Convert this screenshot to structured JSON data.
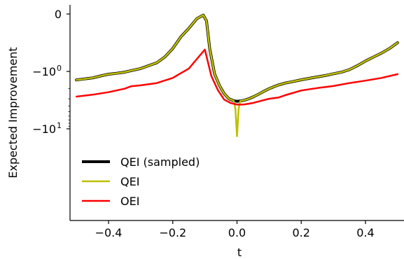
{
  "chart_data": {
    "type": "line",
    "title": "",
    "xlabel": "t",
    "ylabel": "Expected Improvement",
    "xlim": [
      -0.52,
      0.52
    ],
    "y_scale": "symlog",
    "y_linthresh": 1,
    "ylim": [
      -14,
      0
    ],
    "x_ticks": [
      {
        "value": -0.4,
        "label": "−0.4"
      },
      {
        "value": -0.2,
        "label": "−0.2"
      },
      {
        "value": 0.0,
        "label": "0.0"
      },
      {
        "value": 0.2,
        "label": "0.2"
      },
      {
        "value": 0.4,
        "label": "0.4"
      }
    ],
    "y_ticks": [
      {
        "value": 0,
        "label": "0",
        "sup": ""
      },
      {
        "value": -1,
        "label": "−10",
        "sup": "0"
      },
      {
        "value": -10,
        "label": "−10",
        "sup": "1"
      }
    ],
    "legend": {
      "position": "lower-left",
      "entries": [
        {
          "label": "QEI (sampled)",
          "color": "#000000"
        },
        {
          "label": "QEI",
          "color": "#bfbf00"
        },
        {
          "label": "OEI",
          "color": "#ff0000"
        }
      ]
    },
    "grid": false,
    "series": [
      {
        "name": "QEI (sampled)",
        "color": "#000000",
        "linewidth": 4,
        "x": [
          -0.5,
          -0.475,
          -0.45,
          -0.425,
          -0.4,
          -0.375,
          -0.35,
          -0.325,
          -0.3,
          -0.275,
          -0.25,
          -0.225,
          -0.2,
          -0.175,
          -0.15,
          -0.125,
          -0.105,
          -0.095,
          -0.085,
          -0.07,
          -0.055,
          -0.04,
          -0.025,
          -0.01,
          0.0,
          0.01,
          0.025,
          0.04,
          0.055,
          0.07,
          0.085,
          0.1,
          0.115,
          0.13,
          0.15,
          0.175,
          0.2,
          0.225,
          0.25,
          0.275,
          0.3,
          0.325,
          0.35,
          0.375,
          0.4,
          0.425,
          0.45,
          0.475,
          0.5
        ],
        "y": [
          -1.41,
          -1.35,
          -1.3,
          -1.2,
          -1.12,
          -1.08,
          -1.03,
          -0.98,
          -0.95,
          -0.9,
          -0.85,
          -0.75,
          -0.6,
          -0.4,
          -0.25,
          -0.08,
          -0.02,
          -0.12,
          -0.6,
          -1.1,
          -1.75,
          -2.45,
          -3.0,
          -3.25,
          -3.32,
          -3.28,
          -3.15,
          -2.95,
          -2.7,
          -2.45,
          -2.2,
          -2.0,
          -1.85,
          -1.72,
          -1.6,
          -1.5,
          -1.4,
          -1.32,
          -1.25,
          -1.18,
          -1.1,
          -1.03,
          -0.97,
          -0.9,
          -0.82,
          -0.75,
          -0.68,
          -0.6,
          -0.5
        ]
      },
      {
        "name": "QEI",
        "color": "#bfbf00",
        "linewidth": 2.5,
        "x": [
          -0.5,
          -0.475,
          -0.45,
          -0.425,
          -0.4,
          -0.375,
          -0.35,
          -0.325,
          -0.3,
          -0.275,
          -0.25,
          -0.225,
          -0.2,
          -0.175,
          -0.15,
          -0.125,
          -0.105,
          -0.095,
          -0.085,
          -0.07,
          -0.055,
          -0.04,
          -0.025,
          -0.01,
          -0.005,
          0.0,
          0.005,
          0.01,
          0.025,
          0.04,
          0.055,
          0.07,
          0.085,
          0.1,
          0.115,
          0.13,
          0.15,
          0.175,
          0.2,
          0.225,
          0.25,
          0.275,
          0.3,
          0.325,
          0.35,
          0.375,
          0.4,
          0.425,
          0.45,
          0.475,
          0.5
        ],
        "y": [
          -1.41,
          -1.35,
          -1.3,
          -1.2,
          -1.12,
          -1.08,
          -1.03,
          -0.98,
          -0.95,
          -0.9,
          -0.85,
          -0.75,
          -0.6,
          -0.4,
          -0.25,
          -0.08,
          -0.02,
          -0.12,
          -0.6,
          -1.1,
          -1.75,
          -2.45,
          -3.0,
          -3.25,
          -4.5,
          -13.5,
          -4.5,
          -3.28,
          -3.15,
          -2.95,
          -2.7,
          -2.45,
          -2.2,
          -2.0,
          -1.85,
          -1.72,
          -1.6,
          -1.5,
          -1.4,
          -1.32,
          -1.25,
          -1.18,
          -1.1,
          -1.03,
          -0.97,
          -0.9,
          -0.82,
          -0.75,
          -0.68,
          -0.6,
          -0.5
        ]
      },
      {
        "name": "OEI",
        "color": "#ff0000",
        "linewidth": 2.5,
        "x": [
          -0.5,
          -0.45,
          -0.4,
          -0.35,
          -0.33,
          -0.3,
          -0.25,
          -0.2,
          -0.15,
          -0.12,
          -0.1,
          -0.08,
          -0.06,
          -0.04,
          -0.02,
          0.0,
          0.02,
          0.05,
          0.08,
          0.1,
          0.13,
          0.15,
          0.2,
          0.25,
          0.3,
          0.35,
          0.4,
          0.45,
          0.5
        ],
        "y": [
          -2.75,
          -2.55,
          -2.3,
          -2.0,
          -1.82,
          -1.75,
          -1.6,
          -1.3,
          -0.95,
          -0.75,
          -0.62,
          -1.2,
          -2.1,
          -3.1,
          -3.55,
          -3.78,
          -3.78,
          -3.55,
          -3.2,
          -3.0,
          -2.85,
          -2.6,
          -2.15,
          -1.95,
          -1.8,
          -1.6,
          -1.45,
          -1.3,
          -1.12
        ]
      }
    ]
  }
}
